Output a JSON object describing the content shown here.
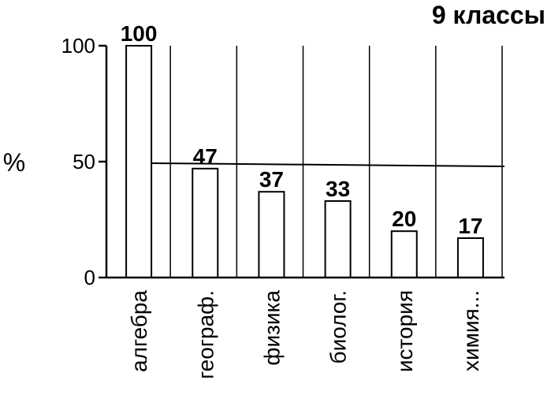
{
  "chart_data": {
    "type": "bar",
    "title": "9 классы",
    "ylabel": "%",
    "xlabel": "",
    "categories": [
      "алгебра",
      "географ.",
      "физика",
      "биолог.",
      "история",
      "химия..."
    ],
    "values": [
      100,
      47,
      37,
      33,
      20,
      17
    ],
    "ylim": [
      0,
      100
    ],
    "yticks": [
      "0",
      "50",
      "100"
    ],
    "grid": "vertical",
    "legend": "none",
    "colors": {
      "bar_fill": "#ffffff",
      "stroke": "#000000"
    }
  }
}
